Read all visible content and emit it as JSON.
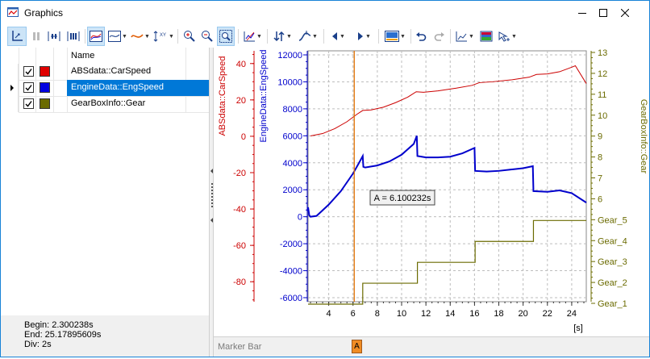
{
  "window": {
    "title": "Graphics"
  },
  "icons": {
    "app": "graphics-app-icon",
    "minimize": "minimize-icon",
    "maximize": "maximize-icon",
    "close": "close-icon"
  },
  "signals": {
    "header": "Name",
    "rows": [
      {
        "name": "ABSdata::CarSpeed",
        "color": "#e00000",
        "checked": true,
        "selected": false
      },
      {
        "name": "EngineData::EngSpeed",
        "color": "#0000e0",
        "checked": true,
        "selected": true
      },
      {
        "name": "GearBoxInfo::Gear",
        "color": "#6b6b00",
        "checked": true,
        "selected": false
      }
    ]
  },
  "info": {
    "begin": "Begin: 2.300238s",
    "end": "End: 25.17895609s",
    "div": "Div: 2s"
  },
  "marker_bar": {
    "label": "Marker Bar",
    "marker": "A"
  },
  "colors": {
    "carspeed": "#cc0000",
    "engspeed": "#0000cc",
    "gear": "#6b6b00",
    "marker": "#e07000",
    "selection": "#0078d7"
  },
  "chart_data": {
    "type": "line",
    "xlabel": "[s]",
    "x_ticks": [
      "4",
      "6",
      "8",
      "10",
      "12",
      "14",
      "16",
      "18",
      "20",
      "22",
      "24"
    ],
    "xlim": [
      2.3,
      25.2
    ],
    "axes": [
      {
        "name": "ABSdata::CarSpeed",
        "ticks": [
          "40",
          "20",
          "0",
          "-20",
          "-40",
          "-60",
          "-80"
        ],
        "ylim": [
          -91,
          47
        ]
      },
      {
        "name": "EngineData::EngSpeed",
        "ticks": [
          "12000",
          "10000",
          "8000",
          "6000",
          "4000",
          "2000",
          "0",
          "-2000",
          "-4000",
          "-6000"
        ],
        "ylim": [
          -6300,
          12300
        ]
      },
      {
        "name": "GearBoxInfo::Gear",
        "ticks": [
          "13",
          "12",
          "11",
          "10",
          "9",
          "8",
          "7",
          "6",
          "Gear_5",
          "Gear_4",
          "Gear_3",
          "Gear_2",
          "Gear_1"
        ]
      }
    ],
    "series": [
      {
        "name": "ABSdata::CarSpeed",
        "x": [
          2.5,
          3.5,
          4.5,
          5.5,
          6.3,
          6.8,
          7.5,
          8.5,
          9.5,
          10.5,
          11.2,
          11.8,
          13.0,
          14.5,
          15.8,
          16.4,
          17.5,
          19.0,
          20.5,
          21.1,
          22.0,
          23.0,
          24.0,
          24.3,
          25.2
        ],
        "y": [
          0.2,
          1.5,
          4.2,
          8.0,
          12.0,
          14.2,
          14.5,
          16.0,
          18.5,
          21.5,
          24.5,
          24.2,
          25.0,
          26.5,
          28.0,
          29.5,
          30.0,
          31.0,
          32.5,
          34.0,
          34.3,
          35.5,
          38.0,
          38.8,
          29.0
        ]
      },
      {
        "name": "EngineData::EngSpeed",
        "x": [
          2.3,
          2.4,
          2.5,
          3.0,
          4.0,
          5.0,
          6.0,
          6.5,
          6.8,
          6.85,
          7.0,
          8.0,
          9.0,
          10.0,
          11.0,
          11.25,
          11.3,
          12.0,
          13.0,
          14.0,
          15.0,
          16.0,
          16.05,
          17.0,
          18.0,
          19.0,
          20.0,
          20.8,
          20.85,
          22.0,
          23.0,
          24.0,
          25.2
        ],
        "y": [
          700,
          100,
          0,
          60,
          900,
          1900,
          3200,
          4000,
          4500,
          3700,
          3650,
          3800,
          4100,
          4600,
          5400,
          6000,
          4500,
          4400,
          4400,
          4450,
          4700,
          5100,
          3400,
          3350,
          3400,
          3500,
          3600,
          3750,
          1900,
          1850,
          1950,
          1750,
          1050
        ]
      },
      {
        "name": "GearBoxInfo::Gear",
        "steps": [
          "Gear_1",
          "Gear_2",
          "Gear_3",
          "Gear_4",
          "Gear_5"
        ],
        "x_changes": [
          2.3,
          6.8,
          11.3,
          16.05,
          20.85,
          25.2
        ]
      }
    ],
    "cursor": {
      "label": "A = 6.100232s",
      "x": 6.100232
    }
  }
}
